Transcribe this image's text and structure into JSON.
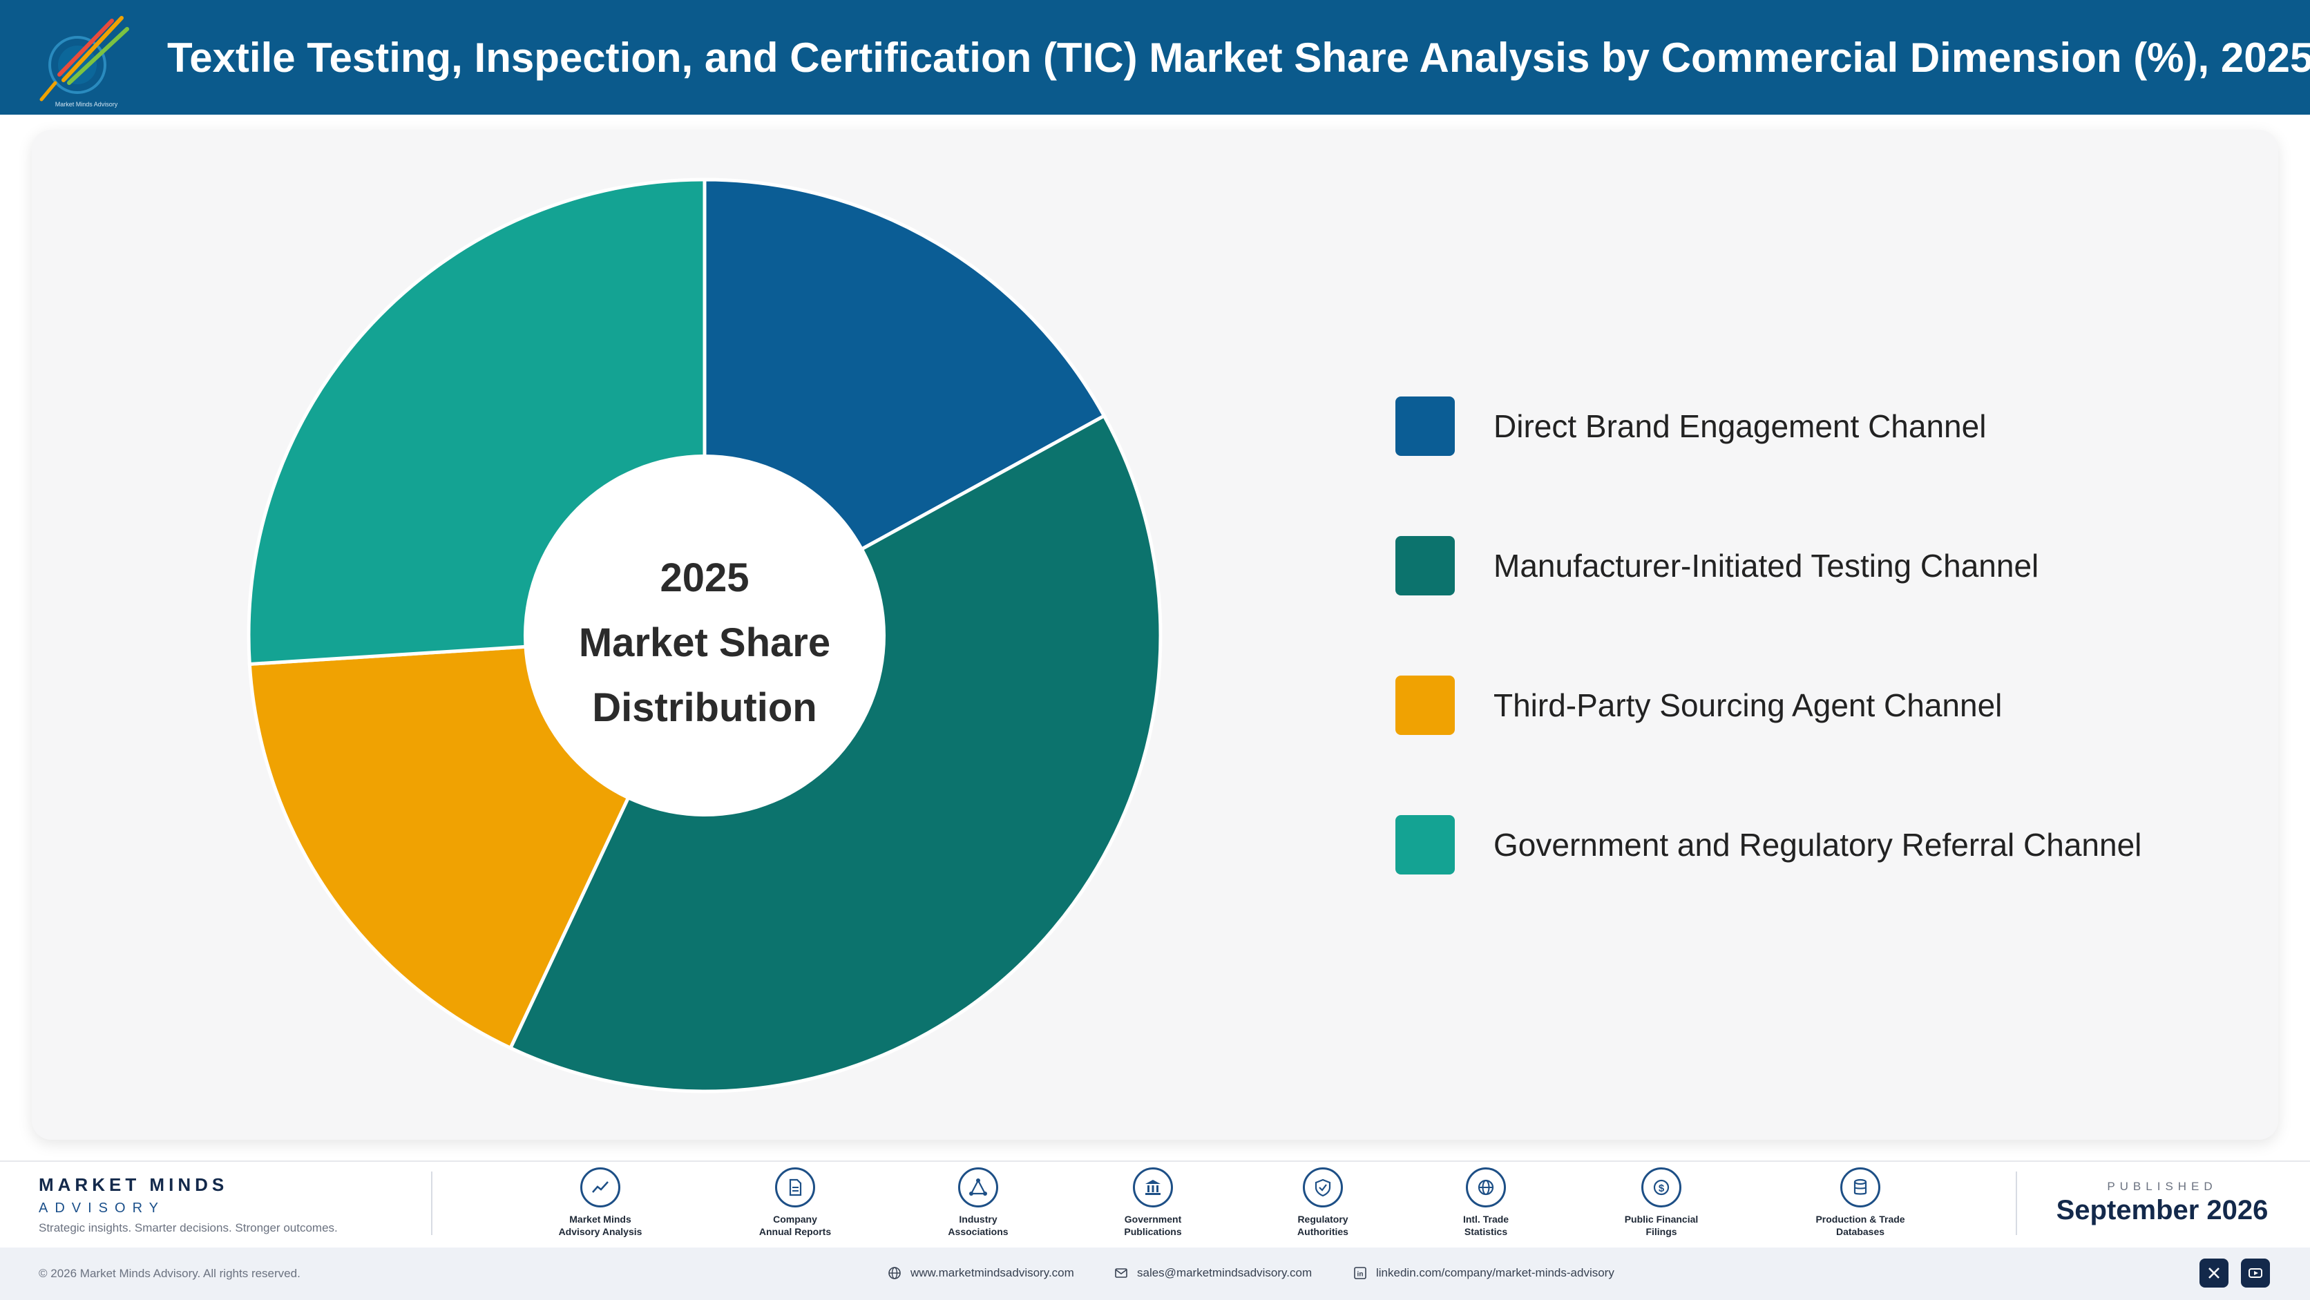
{
  "header": {
    "title": "Textile Testing, Inspection, and Certification (TIC) Market Share Analysis by Commercial Dimension (%), 2025",
    "logo_icon": "market-minds-logo-icon"
  },
  "chart_data": {
    "type": "pie",
    "style": "donut",
    "center_text": [
      "2025",
      "Market Share",
      "Distribution"
    ],
    "categories": [
      "Direct Brand Engagement Channel",
      "Manufacturer-Initiated Testing Channel",
      "Third-Party Sourcing Agent Channel",
      "Government and Regulatory Referral Channel"
    ],
    "values": [
      17,
      40,
      17,
      26
    ],
    "colors": [
      "#0b5d95",
      "#0c736d",
      "#f0a202",
      "#14a393"
    ],
    "legend_position": "right",
    "start_angle_deg": 0,
    "direction": "clockwise"
  },
  "footer": {
    "brand_name": "MARKET MINDS",
    "brand_sub": "ADVISORY",
    "tagline": "Strategic insights. Smarter decisions. Stronger outcomes.",
    "sources": [
      {
        "line1": "Market Minds",
        "line2": "Advisory Analysis",
        "icon": "trend-line-icon"
      },
      {
        "line1": "Company",
        "line2": "Annual Reports",
        "icon": "document-icon"
      },
      {
        "line1": "Industry",
        "line2": "Associations",
        "icon": "network-icon"
      },
      {
        "line1": "Government",
        "line2": "Publications",
        "icon": "government-building-icon"
      },
      {
        "line1": "Regulatory",
        "line2": "Authorities",
        "icon": "shield-check-icon"
      },
      {
        "line1": "Intl. Trade",
        "line2": "Statistics",
        "icon": "globe-icon"
      },
      {
        "line1": "Public Financial",
        "line2": "Filings",
        "icon": "dollar-coin-icon"
      },
      {
        "line1": "Production & Trade",
        "line2": "Databases",
        "icon": "database-icon"
      }
    ],
    "published_label": "PUBLISHED",
    "published_date": "September 2026",
    "copyright": "© 2026 Market Minds Advisory. All rights reserved.",
    "website": "www.marketmindsadvisory.com",
    "email": "sales@marketmindsadvisory.com",
    "linkedin": "linkedin.com/company/market-minds-advisory",
    "social_icons": [
      "x-icon",
      "youtube-icon"
    ]
  }
}
